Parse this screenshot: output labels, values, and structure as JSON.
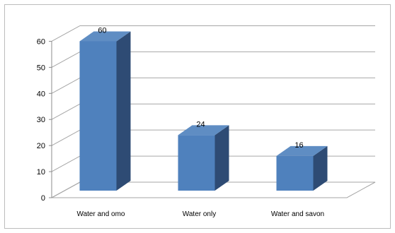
{
  "chart_data": {
    "type": "bar",
    "categories": [
      "Water and omo",
      "Water only",
      "Water and savon"
    ],
    "values": [
      60,
      24,
      16
    ],
    "data_labels": [
      "60",
      "24",
      "16"
    ],
    "yticks": [
      "0",
      "10",
      "20",
      "30",
      "40",
      "50",
      "60"
    ],
    "ylim": [
      0,
      65
    ],
    "grid": true,
    "legend": "none",
    "three_d": true,
    "colors": {
      "front": "#4f81bd",
      "side": "#2e4b74",
      "top": "#5f8dc3",
      "grid": "#a6a6a6",
      "axis": "#8c8c8c"
    }
  }
}
